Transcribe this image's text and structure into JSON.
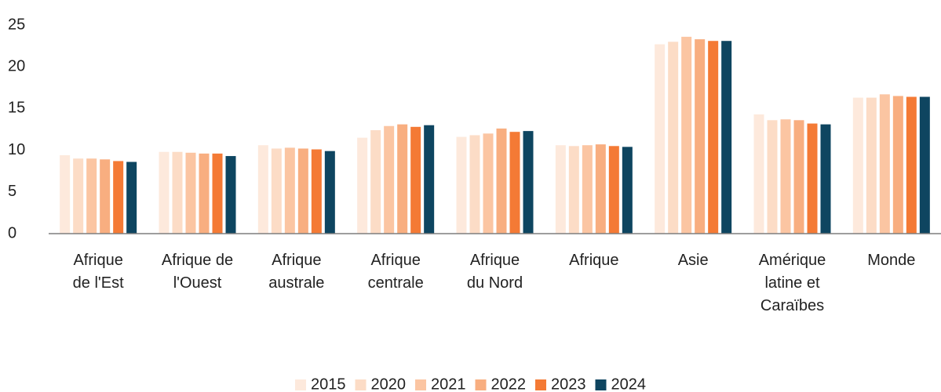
{
  "chart_data": {
    "type": "bar",
    "categories": [
      "Afrique\nde l'Est",
      "Afrique de\nl'Ouest",
      "Afrique\naustrale",
      "Afrique\ncentrale",
      "Afrique\ndu Nord",
      "Afrique",
      "Asie",
      "Amérique\nlatine et\nCaraïbes",
      "Monde"
    ],
    "series": [
      {
        "name": "2015",
        "color": "#fde9dc",
        "values": [
          9.4,
          9.8,
          10.6,
          11.5,
          11.6,
          10.6,
          22.7,
          14.3,
          16.3
        ]
      },
      {
        "name": "2020",
        "color": "#fcdcc6",
        "values": [
          9.0,
          9.8,
          10.2,
          12.4,
          11.8,
          10.5,
          23.0,
          13.6,
          16.3
        ]
      },
      {
        "name": "2021",
        "color": "#fbc5a2",
        "values": [
          9.0,
          9.7,
          10.3,
          12.9,
          12.0,
          10.6,
          23.6,
          13.7,
          16.7
        ]
      },
      {
        "name": "2022",
        "color": "#f8ae80",
        "values": [
          8.9,
          9.6,
          10.2,
          13.1,
          12.6,
          10.7,
          23.3,
          13.6,
          16.5
        ]
      },
      {
        "name": "2023",
        "color": "#f47a35",
        "values": [
          8.7,
          9.6,
          10.1,
          12.8,
          12.2,
          10.5,
          23.1,
          13.2,
          16.4
        ]
      },
      {
        "name": "2024",
        "color": "#0e4560",
        "values": [
          8.6,
          9.3,
          9.9,
          13.0,
          12.3,
          10.4,
          23.1,
          13.1,
          16.4
        ]
      }
    ],
    "ylim": [
      0,
      25
    ],
    "yticks": [
      0,
      5,
      10,
      15,
      20,
      25
    ],
    "grid": false,
    "legend": "bottom"
  }
}
